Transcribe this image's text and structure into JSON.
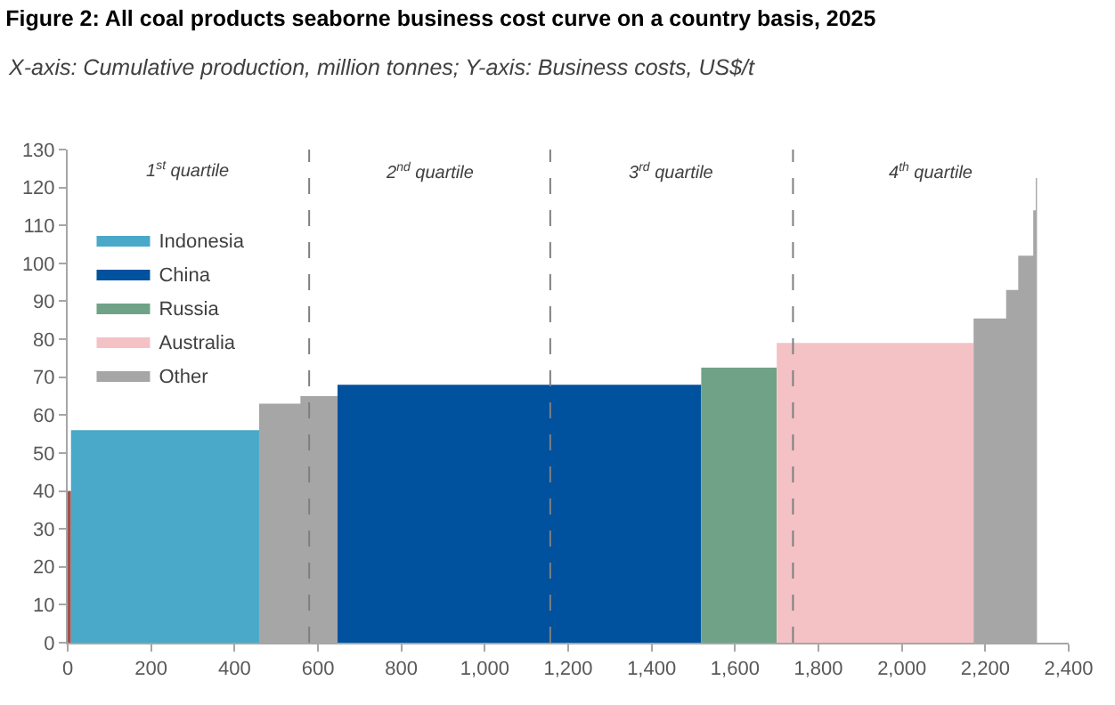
{
  "chart_data": {
    "type": "area",
    "title": "Figure 2: All coal products seaborne business cost curve on a country basis, 2025",
    "subtitle": "X-axis: Cumulative production, million tonnes; Y-axis: Business costs, US$/t",
    "series": [
      {
        "color": "#a0524d",
        "x": [
          0,
          8
        ],
        "values": [
          40,
          40
        ]
      },
      {
        "name": "Indonesia",
        "color": "#4aa8c8",
        "x": [
          8,
          459
        ],
        "values": [
          56,
          56
        ]
      },
      {
        "name": "China",
        "color": "#00519e",
        "x": [
          647,
          1519
        ],
        "values": [
          68,
          68
        ]
      },
      {
        "name": "Russia",
        "color": "#6fa287",
        "x": [
          1519,
          1700
        ],
        "values": [
          72.5,
          72.5
        ]
      },
      {
        "name": "Australia",
        "color": "#f4c2c5",
        "x": [
          1700,
          2172
        ],
        "values": [
          79,
          79
        ]
      },
      {
        "name": "Other",
        "color": "#a6a6a6",
        "x": [
          459,
          558,
          558,
          647,
          null,
          2172,
          2250,
          2250,
          2279,
          2279,
          2315,
          2315,
          2321,
          2321,
          2324
        ],
        "values": [
          63,
          63,
          65,
          65,
          null,
          85.5,
          85.5,
          93,
          93,
          102,
          102,
          114,
          114,
          122.5,
          122.5
        ]
      }
    ],
    "xlim": [
      0,
      2400
    ],
    "xticks": [
      0,
      200,
      400,
      600,
      800,
      {
        "value": 1000,
        "label": "1,000"
      },
      {
        "value": 1200,
        "label": "1,200"
      },
      {
        "value": 1400,
        "label": "1,400"
      },
      {
        "value": 1600,
        "label": "1,600"
      },
      {
        "value": 1800,
        "label": "1,800"
      },
      {
        "value": 2000,
        "label": "2,000"
      },
      {
        "value": 2200,
        "label": "2,200"
      },
      {
        "value": 2400,
        "label": "2,400"
      }
    ],
    "ylim": [
      0,
      130
    ],
    "yticks": [
      0,
      10,
      20,
      30,
      40,
      50,
      60,
      70,
      80,
      90,
      100,
      110,
      120,
      130
    ],
    "ref_lines": [
      {
        "axis": "x",
        "value": 579,
        "color": "#7f7f7f",
        "line_style": "dashed"
      },
      {
        "axis": "x",
        "value": 1157,
        "color": "#7f7f7f",
        "line_style": "dashed"
      },
      {
        "axis": "x",
        "value": 1739,
        "color": "#7f7f7f",
        "line_style": "dashed"
      }
    ],
    "annotations": [
      "1$^{st}$ quartile",
      "2$^{nd}$ quartile",
      "3$^{rd}$ quartile",
      "4$^{th}$ quartile"
    ],
    "legend": "top left"
  }
}
